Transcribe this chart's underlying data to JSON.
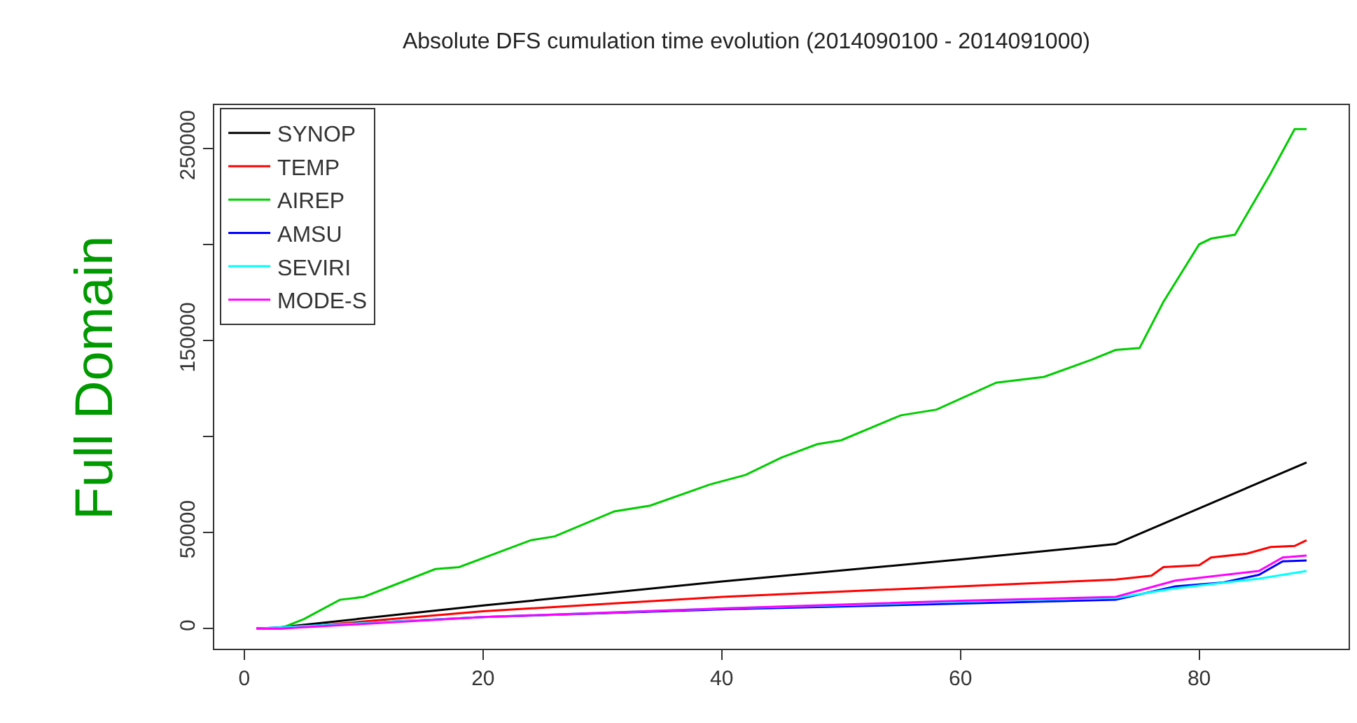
{
  "chart_data": {
    "type": "line",
    "title": "Absolute DFS cumulation time evolution (2014090100 - 2014091000)",
    "annotations": [
      "Full Domain"
    ],
    "xlim": [
      -2.52,
      92.52
    ],
    "xticks": [
      0,
      20,
      40,
      60,
      80
    ],
    "ylim": [
      -10480,
      272480
    ],
    "yticks": [
      0,
      50000,
      {
        "value": 100000,
        "label": null
      },
      150000,
      {
        "value": 200000,
        "label": null
      },
      250000
    ],
    "legend": "top left",
    "marker": "none",
    "line_style": "solid",
    "series": [
      {
        "name": "SYNOP",
        "color": "#000000",
        "x": [
          1,
          2,
          20,
          40,
          60,
          73,
          89
        ],
        "values": [
          0,
          0,
          12000,
          24500,
          36000,
          44000,
          86500
        ]
      },
      {
        "name": "TEMP",
        "color": "#ff0000",
        "x": [
          1,
          3,
          20,
          40,
          60,
          73,
          76,
          77,
          80,
          81,
          84,
          86,
          88,
          89
        ],
        "values": [
          0,
          0,
          9000,
          16500,
          22000,
          25500,
          27500,
          32000,
          33000,
          37000,
          39000,
          42500,
          43000,
          46000
        ]
      },
      {
        "name": "AIREP",
        "color": "#00cd00",
        "x": [
          1,
          3,
          5,
          8,
          10,
          16,
          18,
          24,
          26,
          31,
          34,
          39,
          42,
          45,
          48,
          50,
          55,
          58,
          63,
          67,
          71,
          73,
          75,
          77,
          80,
          81,
          83,
          86,
          88,
          89
        ],
        "values": [
          0,
          0,
          5000,
          15000,
          16500,
          31000,
          32000,
          46000,
          48000,
          61000,
          64000,
          75000,
          80000,
          89000,
          96000,
          98000,
          111000,
          114000,
          128000,
          131000,
          140000,
          145000,
          146000,
          170000,
          200000,
          203000,
          205000,
          237000,
          260000,
          260000
        ]
      },
      {
        "name": "AMSU",
        "color": "#0000ff",
        "x": [
          1,
          20,
          40,
          60,
          73,
          78,
          82,
          85,
          87,
          89
        ],
        "values": [
          0,
          6000,
          10000,
          13000,
          15000,
          22000,
          24000,
          28000,
          35000,
          35500
        ]
      },
      {
        "name": "SEVIRI",
        "color": "#00ffff",
        "x": [
          1,
          20,
          40,
          60,
          73,
          78,
          85,
          89
        ],
        "values": [
          0,
          6000,
          10500,
          14000,
          16000,
          21000,
          26000,
          30000
        ]
      },
      {
        "name": "MODE-S",
        "color": "#ff00ff",
        "x": [
          1,
          3,
          20,
          40,
          60,
          73,
          78,
          85,
          87,
          89
        ],
        "values": [
          0,
          0,
          6000,
          10500,
          14500,
          16500,
          25000,
          30000,
          37000,
          38000
        ]
      }
    ]
  }
}
